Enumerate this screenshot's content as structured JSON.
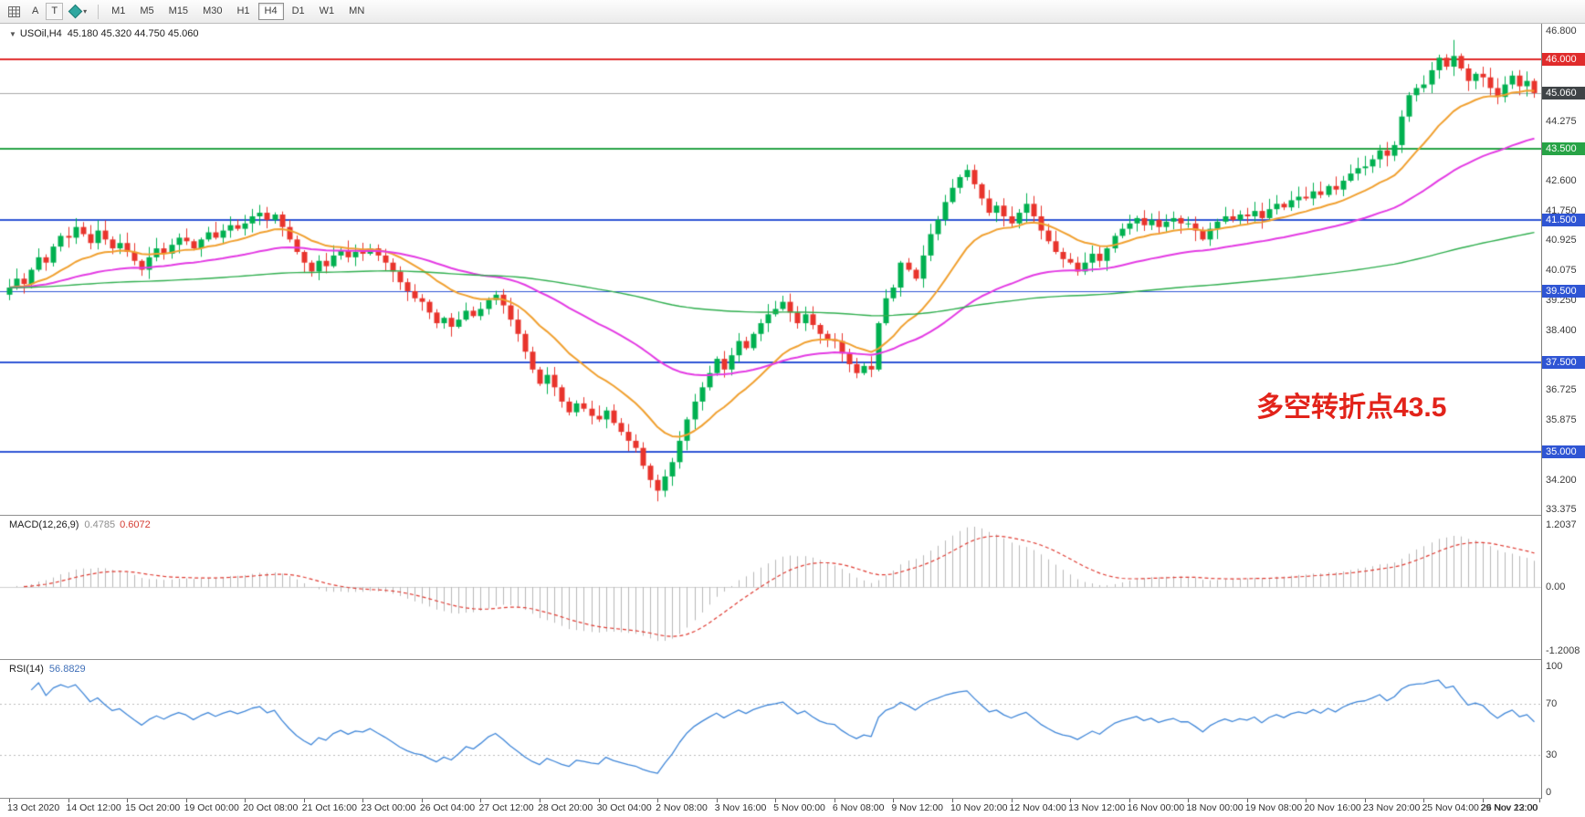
{
  "toolbar": {
    "buttons": [
      {
        "label": "A"
      },
      {
        "label": "T"
      }
    ],
    "timeframes": {
      "items": [
        "M1",
        "M5",
        "M15",
        "M30",
        "H1",
        "H4",
        "D1",
        "W1",
        "MN"
      ],
      "active": "H4"
    }
  },
  "main_chart": {
    "collapse_icon": "▼",
    "title": "USOil,H4",
    "ohlc": "45.180 45.320 44.750 45.060",
    "annotation": {
      "text": "多空转折点43.5",
      "color": "#e2231a"
    }
  },
  "macd_panel": {
    "name": "MACD(12,26,9)",
    "value_main": "0.4785",
    "value_signal": "0.6072"
  },
  "rsi_panel": {
    "name": "RSI(14)",
    "value": "56.8829"
  },
  "chart_data": {
    "type": "candlestick",
    "symbol": "USOil",
    "timeframe": "H4",
    "visible_price_range": [
      33.375,
      46.8
    ],
    "first_open": 39.4,
    "closes": [
      39.6,
      39.85,
      39.7,
      40.1,
      40.45,
      40.3,
      40.75,
      41.05,
      41.0,
      41.3,
      41.1,
      40.85,
      41.2,
      40.95,
      40.7,
      40.85,
      40.6,
      40.35,
      40.1,
      40.45,
      40.7,
      40.55,
      40.8,
      41.0,
      40.9,
      40.7,
      40.95,
      41.15,
      41.0,
      41.2,
      41.35,
      41.25,
      41.4,
      41.6,
      41.7,
      41.5,
      41.65,
      41.3,
      40.95,
      40.6,
      40.3,
      40.05,
      40.35,
      40.2,
      40.5,
      40.65,
      40.45,
      40.6,
      40.55,
      40.7,
      40.5,
      40.3,
      40.05,
      39.75,
      39.5,
      39.3,
      39.2,
      38.9,
      38.6,
      38.75,
      38.5,
      38.7,
      38.95,
      38.8,
      39.0,
      39.25,
      39.4,
      39.1,
      38.7,
      38.3,
      37.8,
      37.3,
      36.9,
      37.15,
      36.8,
      36.4,
      36.1,
      36.35,
      36.2,
      36.0,
      35.9,
      36.15,
      35.8,
      35.55,
      35.3,
      35.1,
      34.6,
      34.2,
      33.9,
      34.3,
      34.7,
      35.3,
      35.9,
      36.4,
      36.8,
      37.2,
      37.6,
      37.3,
      37.7,
      38.1,
      37.9,
      38.3,
      38.6,
      38.85,
      39.0,
      39.2,
      38.9,
      38.6,
      38.85,
      38.55,
      38.3,
      38.15,
      38.1,
      37.75,
      37.45,
      37.2,
      37.4,
      37.3,
      38.6,
      39.3,
      39.6,
      40.3,
      40.1,
      39.85,
      40.5,
      41.1,
      41.5,
      42.0,
      42.4,
      42.7,
      42.9,
      42.5,
      42.1,
      41.7,
      41.9,
      41.6,
      41.4,
      41.7,
      41.95,
      41.6,
      41.2,
      40.9,
      40.6,
      40.4,
      40.3,
      40.05,
      40.3,
      40.55,
      40.35,
      40.7,
      41.05,
      41.25,
      41.4,
      41.55,
      41.35,
      41.5,
      41.3,
      41.45,
      41.55,
      41.4,
      41.4,
      41.2,
      40.95,
      41.25,
      41.45,
      41.6,
      41.5,
      41.65,
      41.6,
      41.75,
      41.55,
      41.8,
      41.95,
      41.85,
      42.05,
      42.15,
      42.1,
      42.3,
      42.2,
      42.45,
      42.35,
      42.6,
      42.8,
      42.95,
      43.0,
      43.2,
      43.45,
      43.3,
      43.6,
      44.4,
      45.0,
      45.2,
      45.3,
      45.7,
      46.05,
      45.8,
      46.1,
      45.75,
      45.4,
      45.6,
      45.5,
      45.2,
      44.95,
      45.3,
      45.55,
      45.25,
      45.4,
      45.06
    ],
    "wick_overrides": {
      "34": {
        "high": 41.92
      },
      "88": {
        "low": 33.6
      },
      "118": {
        "low": 37.25
      },
      "130": {
        "high": 43.05
      },
      "196": {
        "high": 46.55
      }
    },
    "up_color": "#00b050",
    "down_color": "#e8342c",
    "moving_averages": [
      {
        "name": "ma-fast",
        "period": 16,
        "color": "#f0a030",
        "width": 2
      },
      {
        "name": "ma-mid",
        "period": 48,
        "color": "#e33ae3",
        "width": 2
      },
      {
        "name": "ma-slow",
        "period": 200,
        "color": "#2fae4e",
        "width": 1.4
      }
    ],
    "h_levels": [
      {
        "price": 46.0,
        "label": "46.000",
        "color": "#e02b2b",
        "width": 2
      },
      {
        "price": 43.5,
        "label": "43.500",
        "color": "#27a346",
        "width": 2
      },
      {
        "price": 41.5,
        "label": "41.500",
        "color": "#2f55d4",
        "width": 2
      },
      {
        "price": 39.5,
        "label": "39.500",
        "color": "#2f55d4",
        "width": 1
      },
      {
        "price": 37.5,
        "label": "37.500",
        "color": "#2f55d4",
        "width": 2
      },
      {
        "price": 35.0,
        "label": "35.000",
        "color": "#2f55d4",
        "width": 2
      }
    ],
    "bid": {
      "price": 45.06,
      "label": "45.060",
      "line_color": "#a8a8a8",
      "badge_color": "#3f4447"
    },
    "price_axis_ticks": [
      {
        "v": 46.8,
        "t": "46.800"
      },
      {
        "v": 44.275,
        "t": "44.275"
      },
      {
        "v": 42.6,
        "t": "42.600"
      },
      {
        "v": 41.75,
        "t": "41.750"
      },
      {
        "v": 40.925,
        "t": "40.925"
      },
      {
        "v": 40.075,
        "t": "40.075"
      },
      {
        "v": 39.25,
        "t": "39.250"
      },
      {
        "v": 38.4,
        "t": "38.400"
      },
      {
        "v": 36.725,
        "t": "36.725"
      },
      {
        "v": 35.875,
        "t": "35.875"
      },
      {
        "v": 34.2,
        "t": "34.200"
      },
      {
        "v": 33.375,
        "t": "33.375"
      }
    ],
    "macd": {
      "params": [
        12,
        26,
        9
      ],
      "display_main": 0.4785,
      "display_signal": 0.6072,
      "axis": [
        "1.2037",
        "0.00",
        "-1.2008"
      ],
      "hist_color": "#b7b7b7",
      "signal_color": "#df3b32"
    },
    "rsi": {
      "period": 14,
      "display_value": 56.8829,
      "axis": [
        "100",
        "70",
        "30",
        "0"
      ],
      "levels": [
        70,
        30
      ],
      "color": "#3f86d8"
    },
    "time_labels": [
      "13 Oct 2020",
      "14 Oct 12:00",
      "15 Oct 20:00",
      "19 Oct 00:00",
      "20 Oct 08:00",
      "21 Oct 16:00",
      "23 Oct 00:00",
      "26 Oct 04:00",
      "27 Oct 12:00",
      "28 Oct 20:00",
      "30 Oct 04:00",
      "2 Nov 08:00",
      "3 Nov 16:00",
      "5 Nov 00:00",
      "6 Nov 08:00",
      "9 Nov 12:00",
      "10 Nov 20:00",
      "12 Nov 04:00",
      "13 Nov 12:00",
      "16 Nov 00:00",
      "18 Nov 00:00",
      "19 Nov 08:00",
      "20 Nov 16:00",
      "23 Nov 20:00",
      "25 Nov 04:00",
      "26 Nov 12:00",
      "29 Nov 23:00"
    ]
  }
}
